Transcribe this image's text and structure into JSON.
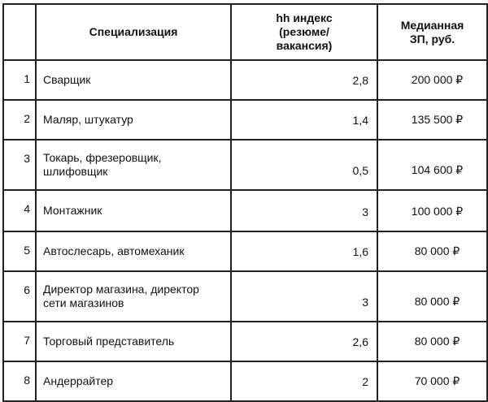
{
  "table": {
    "headers": [
      "",
      "Специализация",
      "hh индекс (резюме/ вакансия)",
      "Медианная ЗП, руб."
    ],
    "rows": [
      {
        "n": "1",
        "spec": "Сварщик",
        "index": "2,8",
        "salary": "200 000 ₽"
      },
      {
        "n": "2",
        "spec": "Маляр, штукатур",
        "index": "1,4",
        "salary": "135 500 ₽"
      },
      {
        "n": "3",
        "spec": "Токарь, фрезеровщик, шлифовщик",
        "index": "0,5",
        "salary": "104 600 ₽"
      },
      {
        "n": "4",
        "spec": "Монтажник",
        "index": "3",
        "salary": "100 000 ₽"
      },
      {
        "n": "5",
        "spec": "Автослесарь, автомеханик",
        "index": "1,6",
        "salary": "80 000 ₽"
      },
      {
        "n": "6",
        "spec": "Директор магазина, директор сети магазинов",
        "index": "3",
        "salary": "80 000 ₽"
      },
      {
        "n": "7",
        "spec": "Торговый представитель",
        "index": "2,6",
        "salary": "80 000 ₽"
      },
      {
        "n": "8",
        "spec": "Андеррайтер",
        "index": "2",
        "salary": "70 000 ₽"
      }
    ]
  }
}
